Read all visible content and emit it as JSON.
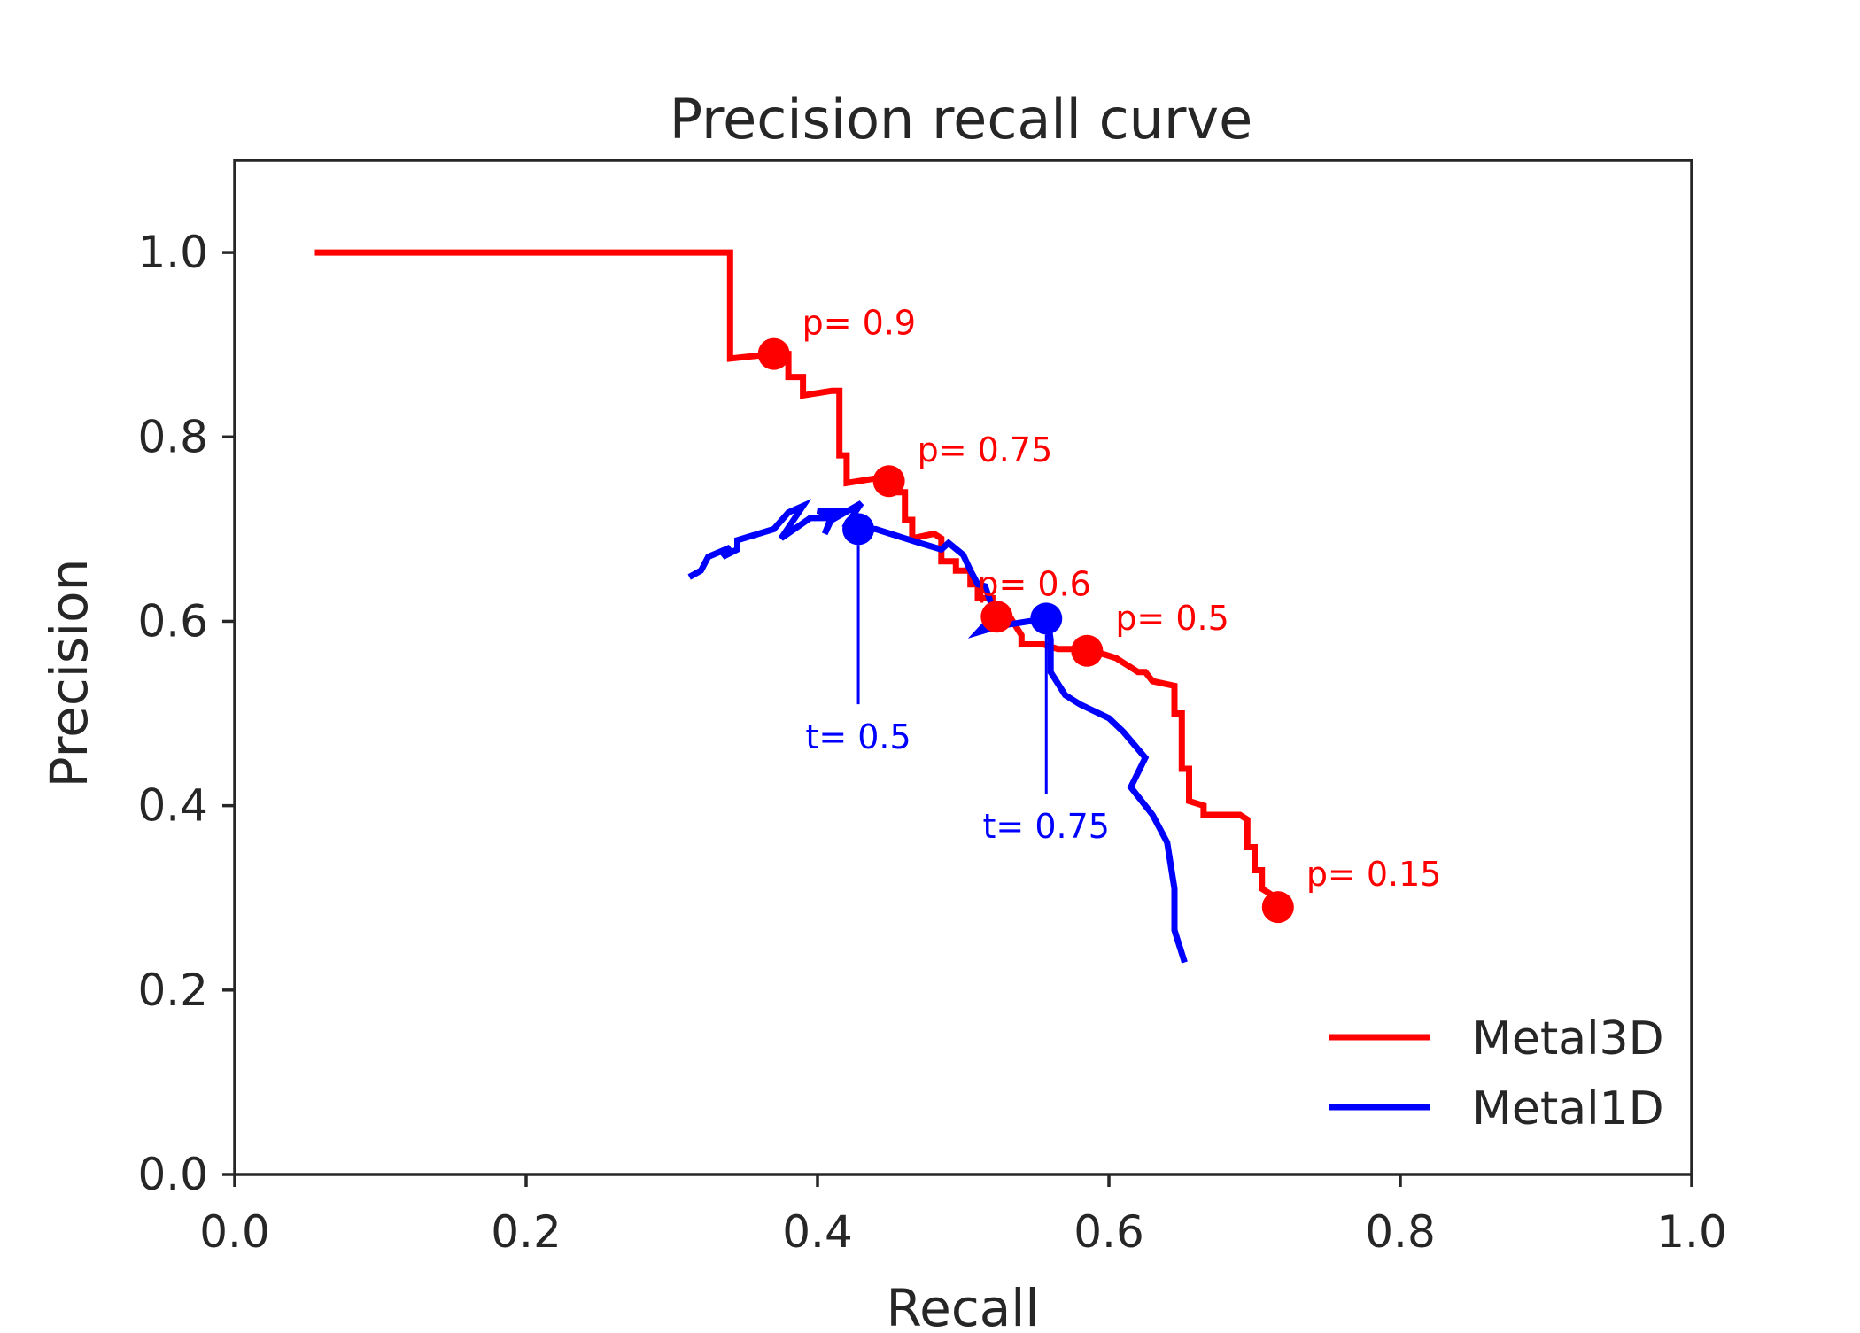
{
  "chart_data": {
    "type": "line",
    "title": "Precision recall curve",
    "xlabel": "Recall",
    "ylabel": "Precision",
    "xlim": [
      0.0,
      1.0
    ],
    "ylim": [
      0.0,
      1.1
    ],
    "xticks": [
      0.0,
      0.2,
      0.4,
      0.6,
      0.8,
      1.0
    ],
    "yticks": [
      0.0,
      0.2,
      0.4,
      0.6,
      0.8,
      1.0
    ],
    "xtick_labels": [
      "0.0",
      "0.2",
      "0.4",
      "0.6",
      "0.8",
      "1.0"
    ],
    "ytick_labels": [
      "0.0",
      "0.2",
      "0.4",
      "0.6",
      "0.8",
      "1.0"
    ],
    "grid": false,
    "legend_position": "bottom-right",
    "series": [
      {
        "name": "Metal3D",
        "color": "#ff0000",
        "points": [
          [
            0.055,
            1.0
          ],
          [
            0.34,
            1.0
          ],
          [
            0.34,
            0.885
          ],
          [
            0.37,
            0.89
          ],
          [
            0.38,
            0.89
          ],
          [
            0.38,
            0.865
          ],
          [
            0.39,
            0.865
          ],
          [
            0.39,
            0.845
          ],
          [
            0.41,
            0.85
          ],
          [
            0.415,
            0.85
          ],
          [
            0.415,
            0.78
          ],
          [
            0.42,
            0.78
          ],
          [
            0.42,
            0.75
          ],
          [
            0.44,
            0.755
          ],
          [
            0.45,
            0.755
          ],
          [
            0.455,
            0.74
          ],
          [
            0.46,
            0.74
          ],
          [
            0.46,
            0.71
          ],
          [
            0.465,
            0.71
          ],
          [
            0.465,
            0.69
          ],
          [
            0.48,
            0.695
          ],
          [
            0.485,
            0.69
          ],
          [
            0.485,
            0.665
          ],
          [
            0.495,
            0.665
          ],
          [
            0.495,
            0.655
          ],
          [
            0.505,
            0.655
          ],
          [
            0.505,
            0.64
          ],
          [
            0.51,
            0.64
          ],
          [
            0.51,
            0.625
          ],
          [
            0.52,
            0.625
          ],
          [
            0.52,
            0.61
          ],
          [
            0.53,
            0.61
          ],
          [
            0.54,
            0.585
          ],
          [
            0.54,
            0.575
          ],
          [
            0.555,
            0.575
          ],
          [
            0.565,
            0.57
          ],
          [
            0.585,
            0.57
          ],
          [
            0.595,
            0.565
          ],
          [
            0.605,
            0.56
          ],
          [
            0.61,
            0.555
          ],
          [
            0.615,
            0.55
          ],
          [
            0.62,
            0.545
          ],
          [
            0.625,
            0.545
          ],
          [
            0.63,
            0.535
          ],
          [
            0.645,
            0.53
          ],
          [
            0.645,
            0.5
          ],
          [
            0.65,
            0.5
          ],
          [
            0.65,
            0.44
          ],
          [
            0.655,
            0.44
          ],
          [
            0.655,
            0.405
          ],
          [
            0.665,
            0.4
          ],
          [
            0.665,
            0.39
          ],
          [
            0.69,
            0.39
          ],
          [
            0.695,
            0.385
          ],
          [
            0.695,
            0.355
          ],
          [
            0.7,
            0.355
          ],
          [
            0.7,
            0.33
          ],
          [
            0.705,
            0.33
          ],
          [
            0.705,
            0.31
          ],
          [
            0.715,
            0.3
          ],
          [
            0.715,
            0.29
          ]
        ],
        "markers": [
          {
            "x": 0.37,
            "y": 0.89,
            "label": "p= 0.9"
          },
          {
            "x": 0.449,
            "y": 0.752,
            "label": "p= 0.75"
          },
          {
            "x": 0.523,
            "y": 0.605,
            "label": "p= 0.6"
          },
          {
            "x": 0.585,
            "y": 0.568,
            "label": "p= 0.5"
          },
          {
            "x": 0.716,
            "y": 0.29,
            "label": "p= 0.15"
          }
        ]
      },
      {
        "name": "Metal1D",
        "color": "#0000ff",
        "points": [
          [
            0.312,
            0.648
          ],
          [
            0.32,
            0.655
          ],
          [
            0.325,
            0.67
          ],
          [
            0.34,
            0.68
          ],
          [
            0.335,
            0.67
          ],
          [
            0.345,
            0.678
          ],
          [
            0.345,
            0.688
          ],
          [
            0.37,
            0.7
          ],
          [
            0.38,
            0.718
          ],
          [
            0.39,
            0.725
          ],
          [
            0.375,
            0.69
          ],
          [
            0.395,
            0.712
          ],
          [
            0.41,
            0.712
          ],
          [
            0.405,
            0.695
          ],
          [
            0.41,
            0.715
          ],
          [
            0.4,
            0.72
          ],
          [
            0.42,
            0.72
          ],
          [
            0.41,
            0.71
          ],
          [
            0.43,
            0.728
          ],
          [
            0.42,
            0.705
          ],
          [
            0.43,
            0.7
          ],
          [
            0.44,
            0.7
          ],
          [
            0.46,
            0.69
          ],
          [
            0.47,
            0.685
          ],
          [
            0.485,
            0.678
          ],
          [
            0.49,
            0.685
          ],
          [
            0.5,
            0.672
          ],
          [
            0.505,
            0.655
          ],
          [
            0.51,
            0.64
          ],
          [
            0.515,
            0.638
          ],
          [
            0.52,
            0.615
          ],
          [
            0.52,
            0.605
          ],
          [
            0.51,
            0.588
          ],
          [
            0.525,
            0.595
          ],
          [
            0.545,
            0.6
          ],
          [
            0.558,
            0.602
          ],
          [
            0.56,
            0.58
          ],
          [
            0.56,
            0.545
          ],
          [
            0.57,
            0.52
          ],
          [
            0.58,
            0.51
          ],
          [
            0.6,
            0.495
          ],
          [
            0.61,
            0.48
          ],
          [
            0.625,
            0.452
          ],
          [
            0.615,
            0.42
          ],
          [
            0.63,
            0.39
          ],
          [
            0.64,
            0.36
          ],
          [
            0.645,
            0.31
          ],
          [
            0.645,
            0.265
          ],
          [
            0.652,
            0.23
          ]
        ],
        "markers": [
          {
            "x": 0.428,
            "y": 0.7,
            "label": "t= 0.5",
            "stem_to": 0.51
          },
          {
            "x": 0.557,
            "y": 0.603,
            "label": "t= 0.75",
            "stem_to": 0.413
          }
        ]
      }
    ]
  }
}
